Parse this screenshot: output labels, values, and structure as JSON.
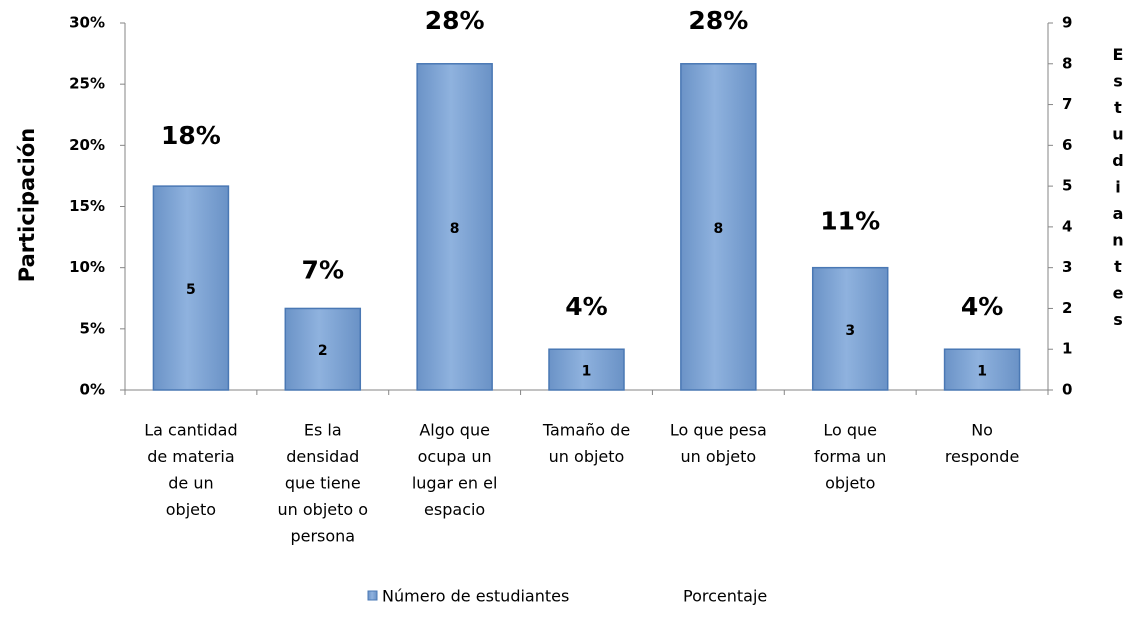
{
  "chart_data": {
    "type": "bar",
    "ylabel": "Participación",
    "y2label": "Estudiantes",
    "categories": [
      [
        "La cantidad",
        "de materia",
        "de un",
        "objeto"
      ],
      [
        "Es la",
        "densidad",
        "que tiene",
        "un objeto o",
        "persona"
      ],
      [
        "Algo  que",
        "ocupa un",
        "lugar  en el",
        "espacio"
      ],
      [
        "Tamaño de",
        "un objeto"
      ],
      [
        "Lo que pesa",
        "un objeto"
      ],
      [
        "Lo que",
        "forma un",
        "objeto"
      ],
      [
        "No",
        "responde"
      ]
    ],
    "series": [
      {
        "name": "Número de estudiantes",
        "color": "#7da3d3",
        "axis": "y2",
        "values": [
          5,
          2,
          8,
          1,
          8,
          3,
          1
        ]
      },
      {
        "name": "Porcentaje",
        "values": [
          18,
          7,
          28,
          4,
          28,
          11,
          4
        ],
        "value_labels": [
          "18%",
          "7%",
          "28%",
          "4%",
          "28%",
          "11%",
          "4%"
        ]
      }
    ],
    "ylim": [
      0,
      30
    ],
    "yticks": [
      {
        "value": 0,
        "label": "0%"
      },
      {
        "value": 5,
        "label": "5%"
      },
      {
        "value": 10,
        "label": "10%"
      },
      {
        "value": 15,
        "label": "15%"
      },
      {
        "value": 20,
        "label": "20%"
      },
      {
        "value": 25,
        "label": "25%"
      },
      {
        "value": 30,
        "label": "30%"
      }
    ],
    "y2lim": [
      0,
      9
    ],
    "y2ticks": [
      0,
      1,
      2,
      3,
      4,
      5,
      6,
      7,
      8,
      9
    ]
  }
}
